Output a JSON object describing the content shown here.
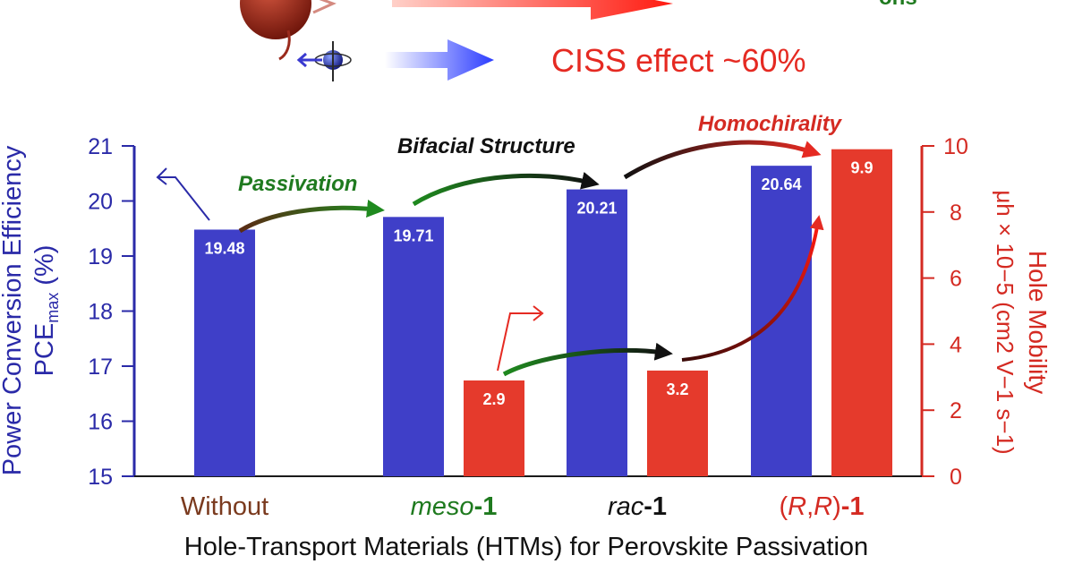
{
  "header": {
    "ciss_text": "CISS effect ~60%",
    "top_right_fragment": "ons"
  },
  "colors": {
    "blue": "#3f3fc8",
    "red": "#e53a2c",
    "axis_blue": "#2a2aa8",
    "axis_red": "#d42a22",
    "green": "#1f7a1f",
    "brown": "#7a3a1e"
  },
  "chart_data": {
    "type": "bar",
    "categories": [
      "Without",
      "meso-1",
      "rac-1",
      "(R,R)-1"
    ],
    "category_parts": [
      [
        {
          "t": "Without",
          "italic": false,
          "bold": false,
          "color": "#7a3a1e"
        }
      ],
      [
        {
          "t": "meso",
          "italic": true,
          "bold": false,
          "color": "#1f7a1f"
        },
        {
          "t": "-1",
          "italic": false,
          "bold": true,
          "color": "#1f7a1f"
        }
      ],
      [
        {
          "t": "rac",
          "italic": true,
          "bold": false,
          "color": "#111111"
        },
        {
          "t": "-1",
          "italic": false,
          "bold": true,
          "color": "#111111"
        }
      ],
      [
        {
          "t": "(",
          "italic": false,
          "bold": false,
          "color": "#d42a22"
        },
        {
          "t": "R",
          "italic": true,
          "bold": false,
          "color": "#d42a22"
        },
        {
          "t": ",",
          "italic": false,
          "bold": false,
          "color": "#d42a22"
        },
        {
          "t": "R",
          "italic": true,
          "bold": false,
          "color": "#d42a22"
        },
        {
          "t": ")",
          "italic": false,
          "bold": false,
          "color": "#d42a22"
        },
        {
          "t": "-1",
          "italic": false,
          "bold": true,
          "color": "#d42a22"
        }
      ]
    ],
    "series": [
      {
        "axis": "left",
        "color": "#3f3fc8",
        "values": [
          19.48,
          19.71,
          20.21,
          20.64
        ],
        "labels": [
          "19.48",
          "19.71",
          "20.21",
          "20.64"
        ]
      },
      {
        "axis": "right",
        "color": "#e53a2c",
        "values": [
          null,
          2.9,
          3.2,
          9.9
        ],
        "labels": [
          "",
          "2.9",
          "3.2",
          "9.9"
        ]
      }
    ],
    "xlabel": "Hole-Transport Materials (HTMs) for Perovskite Passivation",
    "ylabel_left_line1": "Power Conversion Efficiency",
    "ylabel_left_line2_main": "PCE",
    "ylabel_left_line2_sub": "max",
    "ylabel_left_line2_tail": " (%)",
    "ylabel_right_line1": "Hole Mobility",
    "ylabel_right_line2": "μh × 10−5 (cm2 V−1 s−1)",
    "ylim_left": [
      15,
      21
    ],
    "yticks_left": [
      15,
      16,
      17,
      18,
      19,
      20,
      21
    ],
    "ylim_right": [
      0,
      10
    ],
    "yticks_right": [
      0,
      2,
      4,
      6,
      8,
      10
    ],
    "annotations": [
      "Passivation",
      "Bifacial Structure",
      "Homochirality"
    ]
  }
}
